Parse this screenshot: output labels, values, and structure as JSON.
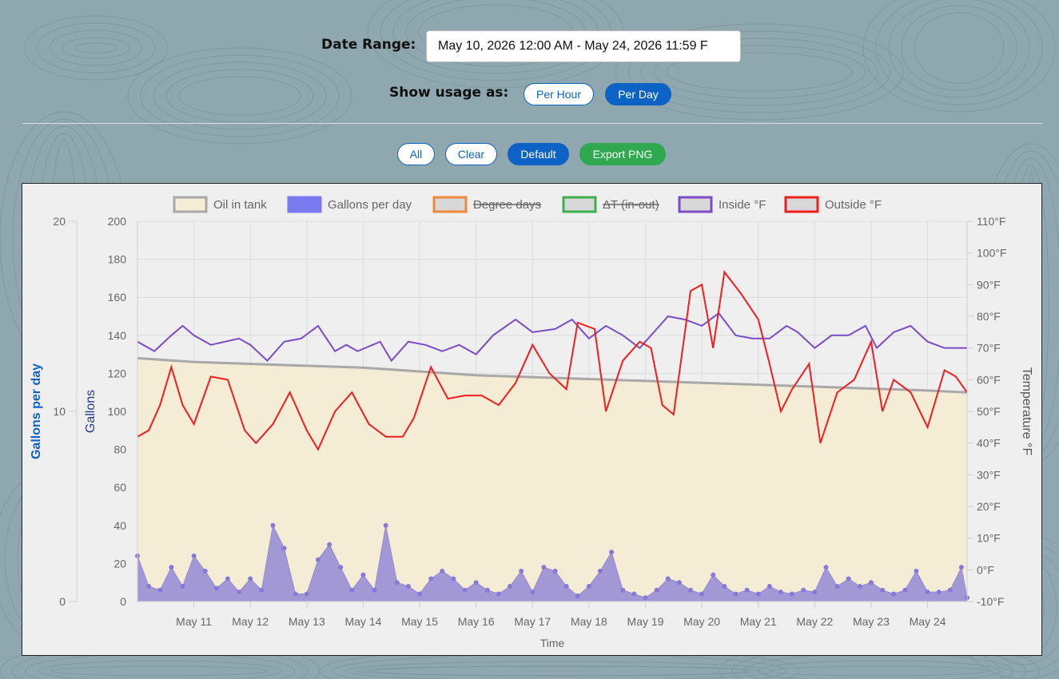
{
  "controls": {
    "date_range_label": "Date Range:",
    "date_range_value": "May 10, 2026 12:00 AM - May 24, 2026 11:59 F",
    "usage_label": "Show usage as:",
    "per_hour": "Per Hour",
    "per_day": "Per Day",
    "selected_usage": "Per Day",
    "all": "All",
    "clear": "Clear",
    "default": "Default",
    "export": "Export PNG"
  },
  "colors": {
    "accent": "#0d62c5",
    "export_green": "#2fa84f",
    "oil_fill": "#f4ecd5",
    "oil_line": "#a8a8a8",
    "gallons": "#9a8fd6",
    "outside": "#f01e1e",
    "inside": "#7a4cc8",
    "degree_days": "#f0883a",
    "delta_t": "#3cb04a"
  },
  "chart_data": {
    "type": "line",
    "xlabel": "Time",
    "x_ticks": [
      "May 11",
      "May 12",
      "May 13",
      "May 14",
      "May 15",
      "May 16",
      "May 17",
      "May 18",
      "May 19",
      "May 20",
      "May 21",
      "May 22",
      "May 23",
      "May 24"
    ],
    "x_range": [
      "2026-05-10 00:00",
      "2026-05-24 23:59"
    ],
    "y_axes": {
      "gallons_per_day": {
        "label": "Gallons per day",
        "range": [
          0,
          20
        ],
        "ticks": [
          "0",
          "10",
          "20"
        ]
      },
      "gallons": {
        "label": "Gallons",
        "range": [
          0,
          200
        ],
        "ticks": [
          "0",
          "20",
          "40",
          "60",
          "80",
          "100",
          "120",
          "140",
          "160",
          "180",
          "200"
        ]
      },
      "temperature": {
        "label": "Temperature °F",
        "range": [
          -10,
          110
        ],
        "ticks": [
          "-10°F",
          "0°F",
          "10°F",
          "20°F",
          "30°F",
          "40°F",
          "50°F",
          "60°F",
          "70°F",
          "80°F",
          "90°F",
          "100°F",
          "110°F"
        ]
      }
    },
    "legend": [
      {
        "name": "Oil in tank",
        "hidden": false
      },
      {
        "name": "Gallons per day",
        "hidden": false
      },
      {
        "name": "Degree days",
        "hidden": true
      },
      {
        "name": "ΔT (in-out)",
        "hidden": true
      },
      {
        "name": "Inside °F",
        "hidden": false
      },
      {
        "name": "Outside °F",
        "hidden": false
      }
    ],
    "series": [
      {
        "name": "Oil in tank",
        "axis": "gallons",
        "day": [
          0,
          1,
          2,
          3,
          4,
          5,
          6,
          7,
          8,
          9,
          10,
          11,
          12,
          13,
          14,
          14.7
        ],
        "values": [
          128,
          126,
          125,
          124,
          123,
          121,
          119,
          118,
          117,
          116,
          115,
          114,
          113,
          112,
          111,
          110
        ]
      },
      {
        "name": "Inside °F",
        "axis": "temperature",
        "day": [
          0,
          0.3,
          0.6,
          0.8,
          1.0,
          1.3,
          1.8,
          2.0,
          2.3,
          2.6,
          2.9,
          3.2,
          3.5,
          3.7,
          3.9,
          4.3,
          4.5,
          4.8,
          5.1,
          5.4,
          5.7,
          6.0,
          6.3,
          6.7,
          7.0,
          7.4,
          7.7,
          8.0,
          8.3,
          8.6,
          8.9,
          9.2,
          9.4,
          9.7,
          10.0,
          10.3,
          10.6,
          10.9,
          11.2,
          11.5,
          11.7,
          12.0,
          12.3,
          12.6,
          12.9,
          13.1,
          13.4,
          13.7,
          14.0,
          14.3,
          14.7
        ],
        "values": [
          72,
          69,
          74,
          77,
          74,
          71,
          73,
          71,
          66,
          72,
          73,
          77,
          69,
          71,
          69,
          72,
          66,
          72,
          71,
          69,
          71,
          68,
          74,
          79,
          75,
          76,
          79,
          73,
          77,
          74,
          70,
          76,
          80,
          79,
          77,
          81,
          74,
          73,
          73,
          77,
          75,
          70,
          74,
          74,
          77,
          70,
          75,
          77,
          72,
          70,
          70
        ]
      },
      {
        "name": "Outside °F",
        "axis": "temperature",
        "day": [
          0,
          0.2,
          0.4,
          0.6,
          0.8,
          1.0,
          1.3,
          1.6,
          1.9,
          2.1,
          2.4,
          2.7,
          3.0,
          3.2,
          3.5,
          3.8,
          4.1,
          4.4,
          4.7,
          4.9,
          5.2,
          5.5,
          5.8,
          6.1,
          6.4,
          6.7,
          7.0,
          7.3,
          7.6,
          7.8,
          8.1,
          8.3,
          8.6,
          8.9,
          9.1,
          9.3,
          9.5,
          9.8,
          10.0,
          10.2,
          10.4,
          10.7,
          11.0,
          11.2,
          11.4,
          11.6,
          11.9,
          12.1,
          12.4,
          12.7,
          13.0,
          13.2,
          13.4,
          13.7,
          14.0,
          14.3,
          14.5,
          14.7
        ],
        "values": [
          42,
          44,
          52,
          64,
          52,
          46,
          61,
          60,
          44,
          40,
          46,
          56,
          44,
          38,
          50,
          56,
          46,
          42,
          42,
          48,
          64,
          54,
          55,
          55,
          52,
          59,
          71,
          62,
          57,
          78,
          76,
          50,
          66,
          72,
          70,
          52,
          49,
          88,
          90,
          70,
          94,
          87,
          79,
          65,
          50,
          57,
          65,
          40,
          56,
          60,
          72,
          50,
          60,
          56,
          45,
          63,
          61,
          56
        ]
      },
      {
        "name": "Gallons per day",
        "axis": "gallons_per_day",
        "day": [
          0,
          0.2,
          0.4,
          0.6,
          0.8,
          1.0,
          1.2,
          1.4,
          1.6,
          1.8,
          2.0,
          2.2,
          2.4,
          2.6,
          2.8,
          3.0,
          3.2,
          3.4,
          3.6,
          3.8,
          4.0,
          4.2,
          4.4,
          4.6,
          4.8,
          5.0,
          5.2,
          5.4,
          5.6,
          5.8,
          6.0,
          6.2,
          6.4,
          6.6,
          6.8,
          7.0,
          7.2,
          7.4,
          7.6,
          7.8,
          8.0,
          8.2,
          8.4,
          8.6,
          8.8,
          9.0,
          9.2,
          9.4,
          9.6,
          9.8,
          10.0,
          10.2,
          10.4,
          10.6,
          10.8,
          11.0,
          11.2,
          11.4,
          11.6,
          11.8,
          12.0,
          12.2,
          12.4,
          12.6,
          12.8,
          13.0,
          13.2,
          13.4,
          13.6,
          13.8,
          14.0,
          14.2,
          14.4,
          14.6,
          14.7
        ],
        "values": [
          2.4,
          0.8,
          0.6,
          1.8,
          0.8,
          2.4,
          1.6,
          0.7,
          1.2,
          0.5,
          1.2,
          0.6,
          4.0,
          2.8,
          0.4,
          0.4,
          2.2,
          3.0,
          1.8,
          0.6,
          1.4,
          0.6,
          4.0,
          1.0,
          0.8,
          0.4,
          1.2,
          1.6,
          1.2,
          0.6,
          1.0,
          0.6,
          0.4,
          0.8,
          1.6,
          0.5,
          1.8,
          1.6,
          0.8,
          0.3,
          0.8,
          1.6,
          2.6,
          0.6,
          0.4,
          0.2,
          0.6,
          1.2,
          1.0,
          0.6,
          0.4,
          1.4,
          0.8,
          0.4,
          0.6,
          0.4,
          0.8,
          0.5,
          0.4,
          0.6,
          0.5,
          1.8,
          0.8,
          1.2,
          0.8,
          1.0,
          0.6,
          0.4,
          0.6,
          1.6,
          0.5,
          0.5,
          0.6,
          1.8,
          0.2
        ]
      }
    ]
  }
}
